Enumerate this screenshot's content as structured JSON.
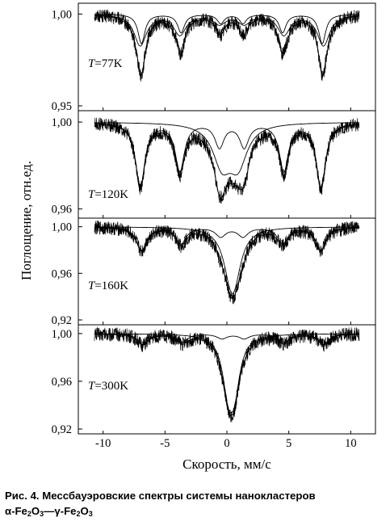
{
  "figure": {
    "ylabel": "Поглощение, отн.ед.",
    "xlabel": "Скорость, мм/с",
    "x_ticks": [
      "-10",
      "-5",
      "0",
      "5",
      "10"
    ],
    "caption": {
      "text": "Рис. 4. Мессбауэровские спектры системы нанокластеров",
      "alpha_symbol": "α",
      "alpha_formula": "-Fe",
      "gamma_symbol": "γ",
      "gamma_formula": "-Fe",
      "dash": "—",
      "sub_fe": "2",
      "sub_o": "3",
      "oxygen": "O"
    }
  },
  "chart_data": [
    {
      "type": "line",
      "temperature_label": {
        "T": "T",
        "value": "=77K"
      },
      "ylim": [
        0.95,
        1.005
      ],
      "y_ticks": [
        "1,00",
        "0,95"
      ],
      "y_tick_values": [
        1.0,
        0.95
      ],
      "xlim": [
        -12,
        12
      ],
      "grid": false,
      "sextets": [
        {
          "name": "",
          "lines": [
            -6.9,
            -3.7,
            -0.5,
            1.3,
            4.5,
            7.7
          ],
          "depths": [
            0.016,
            0.01,
            0.005,
            0.005,
            0.01,
            0.016
          ],
          "widths": [
            0.34,
            0.34,
            0.34,
            0.34,
            0.34,
            0.34
          ]
        },
        {
          "name": "",
          "lines": [
            -7.0,
            -3.8,
            -0.6,
            1.4,
            4.6,
            7.8
          ],
          "depths": [
            0.017,
            0.011,
            0.005,
            0.005,
            0.011,
            0.017
          ],
          "widths": [
            0.6,
            0.6,
            0.6,
            0.6,
            0.6,
            0.6
          ]
        }
      ],
      "total_min": 0.953
    },
    {
      "type": "line",
      "temperature_label": {
        "T": "T",
        "value": "=120K"
      },
      "ylim": [
        0.958,
        1.0045
      ],
      "y_ticks": [
        "1,00",
        "0,96"
      ],
      "y_tick_values": [
        1.0,
        0.96
      ],
      "xlim": [
        -12,
        12
      ],
      "grid": false,
      "sextets": [
        {
          "name": "",
          "lines": [
            -7.0,
            -3.8,
            -0.6,
            1.4,
            4.6,
            7.6
          ],
          "depths": [
            0.03,
            0.022,
            0.011,
            0.011,
            0.022,
            0.03
          ],
          "widths": [
            0.45,
            0.45,
            0.45,
            0.45,
            0.45,
            0.45
          ]
        },
        {
          "name": "",
          "lines": [
            -0.4,
            0.9
          ],
          "depths": [
            0.018,
            0.018
          ],
          "widths": [
            0.9,
            0.9
          ]
        }
      ],
      "total_min": 0.961
    },
    {
      "type": "line",
      "temperature_label": {
        "T": "T",
        "value": "=160K"
      },
      "ylim": [
        0.92,
        1.006
      ],
      "y_ticks": [
        "1,00",
        "0,96",
        "0,92"
      ],
      "y_tick_values": [
        1.0,
        0.96,
        0.92
      ],
      "xlim": [
        -12,
        12
      ],
      "grid": false,
      "sextets": [
        {
          "name": "",
          "lines": [
            -6.9,
            -3.7,
            -0.5,
            1.3,
            4.5,
            7.6
          ],
          "depths": [
            0.02,
            0.014,
            0.008,
            0.008,
            0.014,
            0.02
          ],
          "widths": [
            0.5,
            0.5,
            0.5,
            0.5,
            0.5,
            0.5
          ]
        },
        {
          "name": "",
          "lines": [
            0.3,
            0.6
          ],
          "depths": [
            0.03,
            0.03
          ],
          "widths": [
            0.7,
            0.7
          ]
        }
      ],
      "total_min": 0.927
    },
    {
      "type": "line",
      "temperature_label": {
        "T": "T",
        "value": "=300K"
      },
      "ylim": [
        0.92,
        1.006
      ],
      "y_ticks": [
        "1,00",
        "0,96",
        "0,92"
      ],
      "y_tick_values": [
        1.0,
        0.96,
        0.92
      ],
      "xlim": [
        -12,
        12
      ],
      "grid": false,
      "sextets": [
        {
          "name": "",
          "lines": [
            -6.8,
            -3.6,
            -0.4,
            1.4,
            4.6,
            7.8
          ],
          "depths": [
            0.009,
            0.007,
            0.004,
            0.004,
            0.007,
            0.009
          ],
          "widths": [
            0.5,
            0.5,
            0.5,
            0.5,
            0.5,
            0.5
          ]
        },
        {
          "name": "",
          "lines": [
            0.1,
            0.6
          ],
          "depths": [
            0.04,
            0.04
          ],
          "widths": [
            0.55,
            0.55
          ]
        }
      ],
      "total_min": 0.924
    }
  ]
}
